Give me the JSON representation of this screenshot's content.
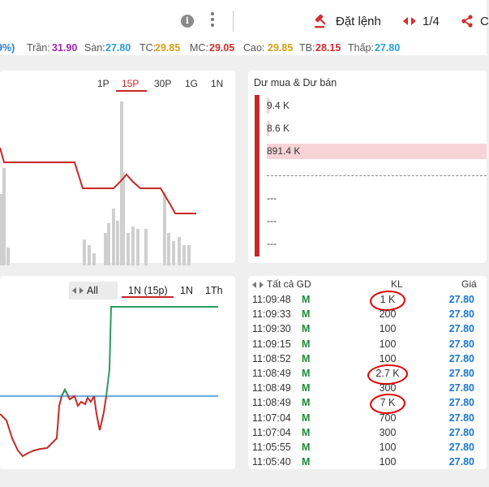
{
  "header": {
    "order_label": "Đặt lệnh",
    "page_indicator": "1/4",
    "share_label": "C"
  },
  "price_bar": [
    {
      "key": "pct",
      "label": "",
      "value": "9%)",
      "color": "#2a7fd6"
    },
    {
      "key": "tran",
      "label": "Trần:",
      "value": "31.90",
      "color": "#9c27b0"
    },
    {
      "key": "san",
      "label": "Sàn:",
      "value": "27.80",
      "color": "#2a9fd6"
    },
    {
      "key": "tc",
      "label": "TC:",
      "value": "29.85",
      "color": "#d4a017"
    },
    {
      "key": "mc",
      "label": "MC:",
      "value": "29.05",
      "color": "#d32f2f"
    },
    {
      "key": "cao",
      "label": "Cao:",
      "value": "29.85",
      "color": "#d4a017"
    },
    {
      "key": "tb",
      "label": "TB:",
      "value": "28.15",
      "color": "#d32f2f"
    },
    {
      "key": "thap",
      "label": "Thấp:",
      "value": "27.80",
      "color": "#2a9fd6"
    }
  ],
  "intraday_chart": {
    "timeframes": [
      "1P",
      "15P",
      "30P",
      "1G",
      "1N"
    ],
    "active_timeframe": "15P"
  },
  "order_book": {
    "title": "Dư mua & Dư bán",
    "levels": [
      {
        "label": "9.4 K",
        "fill": 0.01
      },
      {
        "label": "8.6 K",
        "fill": 0.01
      },
      {
        "label": "891.4 K",
        "fill": 1.0
      },
      {
        "label": "---",
        "fill": 0
      },
      {
        "label": "---",
        "fill": 0
      },
      {
        "label": "---",
        "fill": 0
      }
    ]
  },
  "trend_chart": {
    "filter_label": "All",
    "ranges": [
      "1N (15p)",
      "1N",
      "1Th"
    ],
    "active_range": "1N (15p)"
  },
  "trades": {
    "columns": {
      "filter": "Tất cả GD",
      "volume": "KL",
      "price": "Giá"
    },
    "rows": [
      {
        "time": "11:09:48",
        "side": "M",
        "volume": "1 K",
        "price": "27.80",
        "circled": true
      },
      {
        "time": "11:09:33",
        "side": "M",
        "volume": "200",
        "price": "27.80",
        "circled": false
      },
      {
        "time": "11:09:30",
        "side": "M",
        "volume": "100",
        "price": "27.80",
        "circled": false
      },
      {
        "time": "11:09:15",
        "side": "M",
        "volume": "100",
        "price": "27.80",
        "circled": false
      },
      {
        "time": "11:08:52",
        "side": "M",
        "volume": "100",
        "price": "27.80",
        "circled": false
      },
      {
        "time": "11:08:49",
        "side": "M",
        "volume": "2.7 K",
        "price": "27.80",
        "circled": true
      },
      {
        "time": "11:08:49",
        "side": "M",
        "volume": "300",
        "price": "27.80",
        "circled": false
      },
      {
        "time": "11:08:49",
        "side": "M",
        "volume": "7 K",
        "price": "27.80",
        "circled": true
      },
      {
        "time": "11:07:04",
        "side": "M",
        "volume": "700",
        "price": "27.80",
        "circled": false
      },
      {
        "time": "11:07:04",
        "side": "M",
        "volume": "300",
        "price": "27.80",
        "circled": false
      },
      {
        "time": "11:05:55",
        "side": "M",
        "volume": "100",
        "price": "27.80",
        "circled": false
      },
      {
        "time": "11:05:40",
        "side": "M",
        "volume": "100",
        "price": "27.80",
        "circled": false
      }
    ]
  },
  "colors": {
    "accent_red": "#c62828",
    "buy_green": "#1e8a3a",
    "price_blue": "#1976d2",
    "reference_blue": "#3d8fd6",
    "trend_green": "#2e9a63",
    "volume_gray": "#cfcfcf",
    "book_fill": "#f7d3d6"
  }
}
